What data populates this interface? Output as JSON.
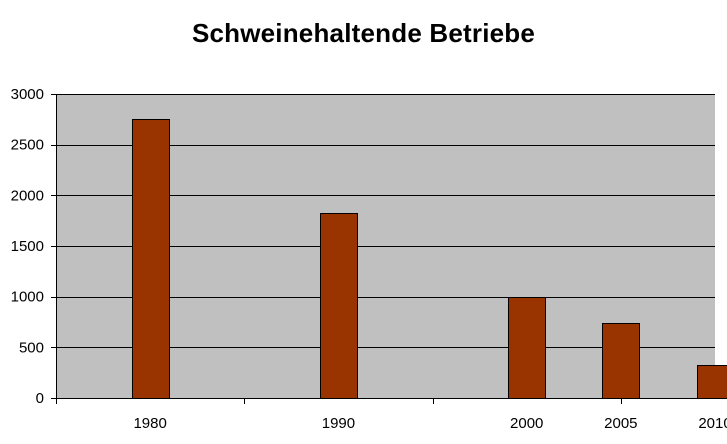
{
  "chart_data": {
    "type": "bar",
    "title": "Schweinehaltende Betriebe",
    "xlabel": "",
    "ylabel": "",
    "x_ticks": [
      {
        "value": 1980,
        "label": "1980"
      },
      {
        "value": 1990,
        "label": "1990"
      },
      {
        "value": 2000,
        "label": "2000"
      },
      {
        "value": 2005,
        "label": "2005"
      },
      {
        "value": 2010,
        "label": "2010"
      }
    ],
    "x_domain": [
      1975,
      2010
    ],
    "x_boundaries": [
      1975,
      1985,
      1995,
      2005,
      2015
    ],
    "series": [
      {
        "x": [
          1980,
          1990,
          2000,
          2005,
          2010
        ],
        "values": [
          2750,
          1830,
          1000,
          745,
          330
        ]
      }
    ],
    "ylim": [
      0,
      3000
    ],
    "y_ticks": [
      0,
      500,
      1000,
      1500,
      2000,
      2500,
      3000
    ],
    "grid": true,
    "legend": "none",
    "colors": {
      "plot_background": "#C0C0C0",
      "bar_fill": "#993300",
      "bar_stroke": "#000000",
      "grid": "#000000",
      "axis": "#000000"
    }
  }
}
